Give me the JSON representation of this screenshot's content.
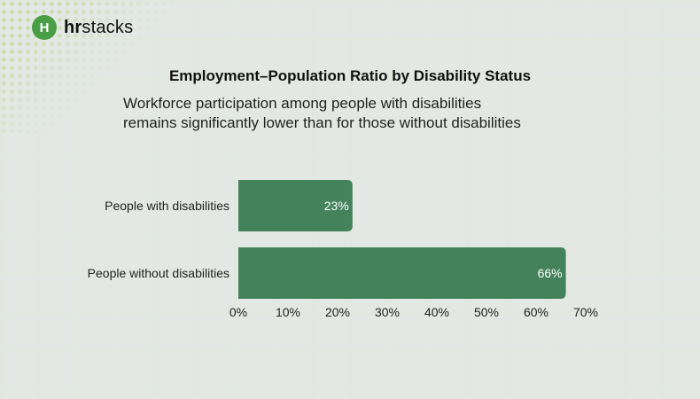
{
  "logo": {
    "mark": "H",
    "text_bold": "hr",
    "text_rest": "stacks"
  },
  "chart_data": {
    "type": "bar",
    "orientation": "horizontal",
    "title": "Employment–Population Ratio by Disability Status",
    "subtitle_lines": [
      "Workforce participation among people with disabilities",
      "remains significantly lower than for those without disabilities"
    ],
    "categories": [
      "People with disabilities",
      "People without disabilities"
    ],
    "values": [
      23,
      66
    ],
    "data_labels": [
      "23%",
      "66%"
    ],
    "xlim": [
      0,
      70
    ],
    "xticks": [
      "0%",
      "10%",
      "20%",
      "30%",
      "40%",
      "50%",
      "60%",
      "70%"
    ],
    "grid": true,
    "colors": {
      "bar": "#43825a",
      "label": "#ffffff"
    }
  }
}
